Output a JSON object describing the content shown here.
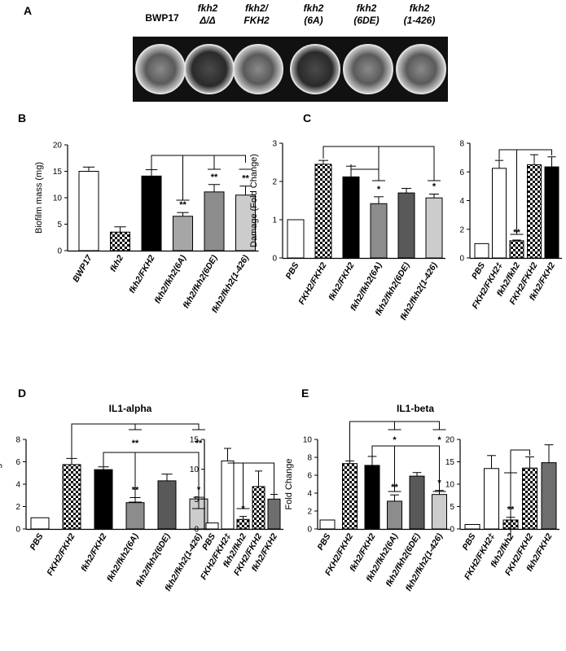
{
  "panel_letters": [
    "A",
    "B",
    "C",
    "D",
    "E"
  ],
  "panel_a": {
    "wells": [
      {
        "line1": "BWP17",
        "line2": "",
        "italic": false
      },
      {
        "line1": "fkh2",
        "line2": "Δ/Δ",
        "italic": true
      },
      {
        "line1": "fkh2/",
        "line2": "FKH2",
        "italic": true
      },
      {
        "line1": "fkh2",
        "line2": "(6A)",
        "italic": true
      },
      {
        "line1": "fkh2",
        "line2": "(6DE)",
        "italic": true
      },
      {
        "line1": "fkh2",
        "line2": "(1-426)",
        "italic": true
      }
    ]
  },
  "fills": {
    "white": "#ffffff",
    "checker": "checker",
    "black": "#000000",
    "light_gray": "#a6a6a6",
    "mid_gray": "#8c8c8c",
    "dark_gray": "#595959",
    "pale_gray": "#cccccc",
    "medium_gray": "#6e6e6e"
  },
  "chart_data": [
    {
      "id": "B",
      "type": "bar",
      "title": "",
      "ylabel": "Biofilm mass (mg)",
      "ylim": [
        0,
        20
      ],
      "yticks": [
        0,
        5,
        10,
        15,
        20
      ],
      "categories": [
        "BWP17",
        "fkh2",
        "fkh2/FKH2",
        "fkh2/fkh2(6A)",
        "fkh2/fkh2(6DE)",
        "fkh2/fkh2(1-426)"
      ],
      "values": [
        15.0,
        3.5,
        14.1,
        6.5,
        11.1,
        10.5
      ],
      "errors": [
        0.8,
        1.0,
        1.2,
        0.7,
        1.4,
        1.7
      ],
      "fills": [
        "white",
        "checker",
        "black",
        "light_gray",
        "mid_gray",
        "pale_gray"
      ],
      "significance": [
        "",
        "",
        "",
        "**",
        "**",
        "**"
      ]
    },
    {
      "id": "C1",
      "type": "bar",
      "title": "",
      "ylabel": "Damage (Fold Change)",
      "ylim": [
        0,
        3
      ],
      "yticks": [
        0,
        1,
        2,
        3
      ],
      "categories": [
        "PBS",
        "FKH2/FKH2",
        "fkh2/FKH2",
        "fkh2/fkh2(6A)",
        "fkh2/fkh2(6DE)",
        "fkh2/fkh2(1-426)"
      ],
      "values": [
        1.0,
        2.45,
        2.12,
        1.42,
        1.7,
        1.57
      ],
      "errors": [
        0,
        0.1,
        0.28,
        0.18,
        0.12,
        0.1
      ],
      "fills": [
        "white",
        "checker",
        "black",
        "mid_gray",
        "dark_gray",
        "pale_gray"
      ],
      "significance": [
        "",
        "",
        "",
        "*",
        "",
        "*"
      ]
    },
    {
      "id": "C2",
      "type": "bar",
      "title": "",
      "ylabel": "",
      "ylim": [
        0,
        8
      ],
      "yticks": [
        0,
        2,
        4,
        6,
        8
      ],
      "categories": [
        "PBS",
        "FKH2/FKH2‡",
        "fkh2/fkh2",
        "FKH2/FKH2",
        "fkh2/FKH2"
      ],
      "values": [
        1.0,
        6.25,
        1.2,
        6.5,
        6.35
      ],
      "errors": [
        0,
        0.55,
        0.05,
        0.7,
        0.7
      ],
      "fills": [
        "white",
        "white",
        "checker",
        "checker",
        "black"
      ],
      "significance": [
        "",
        "",
        "**",
        "",
        ""
      ]
    },
    {
      "id": "D1",
      "type": "bar",
      "title": "IL1-alpha",
      "ylabel": "Fold Change",
      "ylim": [
        0,
        8
      ],
      "yticks": [
        0,
        2,
        4,
        6,
        8
      ],
      "categories": [
        "PBS",
        "FKH2/FKH2",
        "fkh2/FKH2",
        "fkh2/fkh2(6A)",
        "fkh2/fkh2(6DE)",
        "fkh2/fkh2(1-426)"
      ],
      "values": [
        1.0,
        5.75,
        5.3,
        2.35,
        4.3,
        2.68
      ],
      "errors": [
        0,
        0.55,
        0.25,
        0.45,
        0.6,
        0.15
      ],
      "fills": [
        "white",
        "checker",
        "black",
        "mid_gray",
        "dark_gray",
        "pale_gray"
      ],
      "significance": [
        "",
        "",
        "",
        "**",
        "",
        "*"
      ],
      "bracket_top_sig": [
        "**",
        "**"
      ]
    },
    {
      "id": "D2",
      "type": "bar",
      "title": "",
      "ylabel": "",
      "ylim": [
        0,
        15
      ],
      "yticks": [
        0,
        5,
        10,
        15
      ],
      "categories": [
        "PBS",
        "FKH2/FKH2‡",
        "fkh2/fkh2",
        "FKH2/FKH2",
        "fkh2/FKH2"
      ],
      "values": [
        1.0,
        11.4,
        1.6,
        7.1,
        5.0
      ],
      "errors": [
        0,
        2.1,
        0.5,
        2.6,
        0.8
      ],
      "fills": [
        "white",
        "white",
        "checker",
        "checker",
        "medium_gray"
      ],
      "significance": [
        "",
        "",
        "*",
        "",
        ""
      ]
    },
    {
      "id": "E1",
      "type": "bar",
      "title": "IL1-beta",
      "ylabel": "Fold Change",
      "ylim": [
        0,
        10
      ],
      "yticks": [
        0,
        2,
        4,
        6,
        8,
        10
      ],
      "categories": [
        "PBS",
        "FKH2/FKH2",
        "fkh2/FKH2",
        "fkh2/fkh2(6A)",
        "fkh2/fkh2(6DE)",
        "fkh2/fkh2(1-426)"
      ],
      "values": [
        1.0,
        7.3,
        7.1,
        3.1,
        5.9,
        3.85
      ],
      "errors": [
        0,
        0.3,
        1.0,
        0.7,
        0.4,
        0.45
      ],
      "fills": [
        "white",
        "checker",
        "black",
        "mid_gray",
        "dark_gray",
        "pale_gray"
      ],
      "significance": [
        "",
        "",
        "",
        "**",
        "",
        "*"
      ],
      "bracket_top_sig": [
        "*",
        "*"
      ]
    },
    {
      "id": "E2",
      "type": "bar",
      "title": "",
      "ylabel": "",
      "ylim": [
        0,
        20
      ],
      "yticks": [
        0,
        5,
        10,
        15,
        20
      ],
      "categories": [
        "PBS",
        "FKH2/FKH2‡",
        "fkh2/fkh2",
        "FKH2/FKH2",
        "fkh2/FKH2"
      ],
      "values": [
        1.0,
        13.5,
        2.0,
        13.6,
        14.8
      ],
      "errors": [
        0,
        2.9,
        0.6,
        2.5,
        4.0
      ],
      "fills": [
        "white",
        "white",
        "checker",
        "checker",
        "medium_gray"
      ],
      "significance": [
        "",
        "",
        "**",
        "",
        ""
      ]
    }
  ]
}
